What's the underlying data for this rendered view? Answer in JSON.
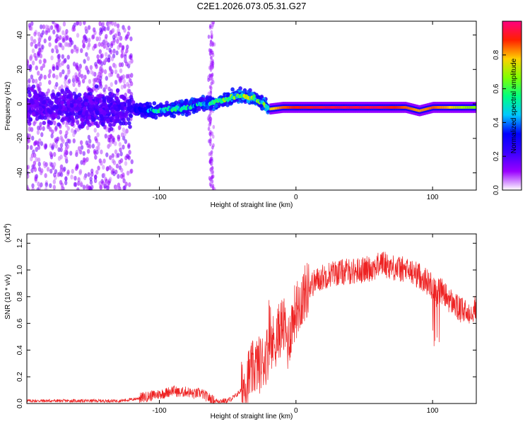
{
  "chart_data": [
    {
      "type": "heatmap",
      "title": "C2E1.2026.073.05.31.G27",
      "xlabel": "Height of straight line (km)",
      "ylabel": "Frequency (Hz)",
      "xlim": [
        -197,
        132
      ],
      "ylim": [
        -50,
        48
      ],
      "xticks": [
        -100,
        0,
        100
      ],
      "yticks": [
        -40,
        -20,
        0,
        20,
        40
      ],
      "colorbar": {
        "label": "Normalized spectral amplitude",
        "range": [
          0,
          1
        ],
        "ticks": [
          "0.0",
          "0.2",
          "0.4",
          "0.6",
          "0.8"
        ],
        "colors": [
          "#ffffff",
          "#9a00ff",
          "#3a00ff",
          "#0000ff",
          "#00c8ff",
          "#00ff80",
          "#80ff00",
          "#ffd000",
          "#ff2000",
          "#ff0080"
        ]
      },
      "ridge": {
        "x": [
          -197,
          -180,
          -160,
          -140,
          -120,
          -110,
          -100,
          -90,
          -80,
          -70,
          -60,
          -50,
          -40,
          -30,
          -25,
          -20,
          -10,
          0,
          20,
          40,
          60,
          80,
          90,
          100,
          110,
          120,
          132
        ],
        "frequency": [
          -1,
          -2,
          -2,
          -3,
          -3,
          -4,
          -4,
          -3,
          -2,
          0,
          1,
          3,
          5,
          3,
          1,
          -3,
          -2,
          -2,
          -2,
          -2,
          -2,
          -2,
          -4,
          -2,
          -2,
          -2,
          -2
        ],
        "amplitude": [
          0.25,
          0.25,
          0.28,
          0.3,
          0.35,
          0.45,
          0.55,
          0.55,
          0.55,
          0.55,
          0.6,
          0.65,
          0.7,
          0.7,
          0.6,
          0.75,
          0.85,
          0.9,
          0.95,
          0.95,
          0.95,
          0.85,
          0.8,
          0.85,
          0.8,
          0.7,
          0.65
        ]
      }
    },
    {
      "type": "line",
      "xlabel": "Height of straight line (km)",
      "ylabel": "SNR (10 * v/v)",
      "y_multiplier": "(x10",
      "y_multiplier_exp": "4",
      "y_multiplier_close": ")",
      "xlim": [
        -197,
        132
      ],
      "ylim": [
        0,
        1.27
      ],
      "xticks": [
        -100,
        0,
        100
      ],
      "yticks": [
        "0.0",
        "0.2",
        "0.4",
        "0.6",
        "0.8",
        "1.0",
        "1.2"
      ],
      "color": "#ee2222",
      "series": [
        {
          "name": "SNR",
          "x": [
            -197,
            -180,
            -160,
            -140,
            -130,
            -120,
            -110,
            -105,
            -100,
            -95,
            -90,
            -85,
            -80,
            -75,
            -70,
            -65,
            -60,
            -55,
            -50,
            -45,
            -40,
            -35,
            -30,
            -25,
            -20,
            -17,
            -14,
            -12,
            -10,
            -8,
            -6,
            -4,
            -2,
            0,
            5,
            10,
            15,
            20,
            25,
            30,
            40,
            50,
            60,
            62,
            70,
            80,
            85,
            90,
            95,
            100,
            103,
            105,
            110,
            115,
            120,
            125,
            132
          ],
          "y": [
            0.02,
            0.02,
            0.02,
            0.02,
            0.02,
            0.03,
            0.05,
            0.06,
            0.07,
            0.08,
            0.1,
            0.08,
            0.09,
            0.07,
            0.08,
            0.05,
            0.02,
            0.02,
            0.02,
            0.05,
            0.1,
            0.2,
            0.28,
            0.3,
            0.4,
            0.45,
            0.5,
            0.55,
            0.6,
            0.55,
            0.45,
            0.55,
            0.65,
            0.7,
            0.8,
            0.88,
            0.92,
            0.95,
            0.97,
            0.98,
            0.99,
            1.0,
            1.03,
            1.06,
            1.02,
            1.0,
            0.98,
            0.96,
            0.92,
            0.88,
            0.82,
            0.86,
            0.8,
            0.75,
            0.7,
            0.68,
            0.72
          ]
        }
      ]
    }
  ]
}
